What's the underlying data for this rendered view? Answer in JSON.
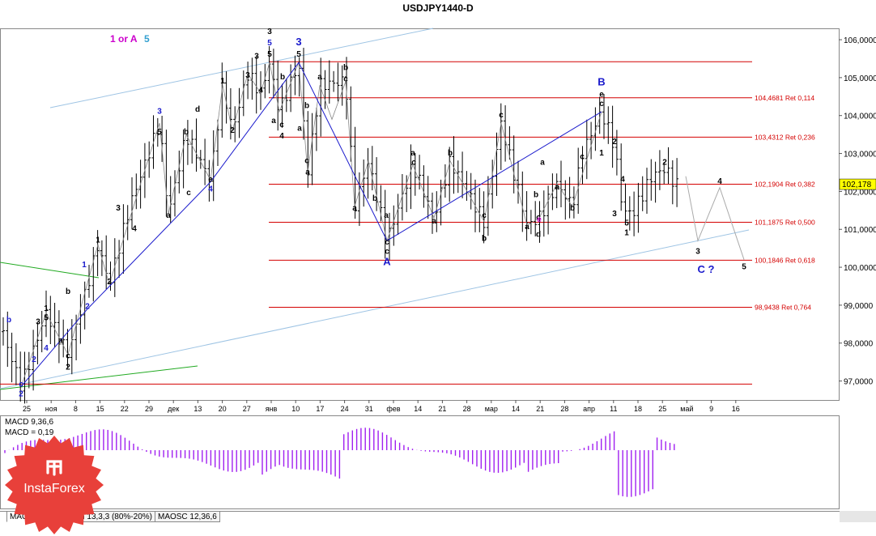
{
  "window": {
    "title": "USDJPY1440-D"
  },
  "header": {
    "wave_label_a": "1 or A",
    "wave_label_b": "5"
  },
  "colors": {
    "fib": "#d40000",
    "wave_blue": "#1a1acc",
    "wave_magenta": "#cc00cc",
    "wave_cyan": "#33a0d0",
    "channel": "#9ec4e4",
    "green": "#22aa22",
    "price_box": "#ffff00",
    "macd": "#a020f0"
  },
  "tabs": [
    {
      "label": "MACD 9,36,6"
    },
    {
      "label": "Stoch 13,3,3 (80%-20%)"
    },
    {
      "label": "MAOSC 12,36,6"
    }
  ],
  "logo": {
    "text": "InstaForex"
  },
  "chart_data": {
    "type": "candlestick",
    "symbol": "USDJPY",
    "timeframe": "D",
    "ylim": [
      96.5,
      106.3
    ],
    "y_ticks": [
      "106,0000",
      "105,0000",
      "104,0000",
      "103,0000",
      "102,0000",
      "101,0000",
      "100,0000",
      "99,0000",
      "98,0000",
      "97,0000"
    ],
    "x_ticks": [
      "25",
      "ноя",
      "8",
      "15",
      "22",
      "29",
      "дек",
      "13",
      "20",
      "27",
      "янв",
      "10",
      "17",
      "24",
      "31",
      "фев",
      "14",
      "21",
      "28",
      "мар",
      "14",
      "21",
      "28",
      "апр",
      "11",
      "18",
      "25",
      "май",
      "9",
      "16"
    ],
    "current_price": "102,178",
    "fib_levels": [
      {
        "value": 105.42,
        "label": ""
      },
      {
        "value": 104.4681,
        "label": "104,4681 Ret 0,114"
      },
      {
        "value": 103.4312,
        "label": "103,4312 Ret 0,236"
      },
      {
        "value": 102.1904,
        "label": "102,1904 Ret 0,382"
      },
      {
        "value": 101.1875,
        "label": "101,1875 Ret 0,500"
      },
      {
        "value": 100.1846,
        "label": "100,1846 Ret 0,618"
      },
      {
        "value": 98.9438,
        "label": "98,9438 Ret 0,764"
      },
      {
        "value": 96.92,
        "label": ""
      }
    ],
    "wave_labels": [
      {
        "text": "b",
        "x": 11,
        "y": 98.55,
        "color": "blue"
      },
      {
        "text": "c",
        "x": 26,
        "y": 96.85,
        "color": "blue"
      },
      {
        "text": "2",
        "x": 26,
        "y": 96.6,
        "color": "blue"
      },
      {
        "text": "1",
        "x": 57,
        "y": 98.85,
        "color": "black"
      },
      {
        "text": "5",
        "x": 57,
        "y": 98.6,
        "color": "black"
      },
      {
        "text": "3",
        "x": 47,
        "y": 98.5,
        "color": "black"
      },
      {
        "text": "a",
        "x": 75,
        "y": 98.0,
        "color": "black"
      },
      {
        "text": "4",
        "x": 57,
        "y": 97.8,
        "color": "blue"
      },
      {
        "text": "2",
        "x": 42,
        "y": 97.5,
        "color": "blue"
      },
      {
        "text": "b",
        "x": 84,
        "y": 99.3,
        "color": "black"
      },
      {
        "text": "c",
        "x": 84,
        "y": 97.6,
        "color": "black"
      },
      {
        "text": "2",
        "x": 84,
        "y": 97.3,
        "color": "black"
      },
      {
        "text": "1",
        "x": 104,
        "y": 100.0,
        "color": "blue"
      },
      {
        "text": "2",
        "x": 108,
        "y": 98.9,
        "color": "blue"
      },
      {
        "text": "1",
        "x": 121,
        "y": 100.65,
        "color": "black"
      },
      {
        "text": "2",
        "x": 135,
        "y": 99.55,
        "color": "black"
      },
      {
        "text": "3",
        "x": 146,
        "y": 101.5,
        "color": "black"
      },
      {
        "text": "4",
        "x": 166,
        "y": 100.95,
        "color": "black"
      },
      {
        "text": "3",
        "x": 197,
        "y": 104.05,
        "color": "blue"
      },
      {
        "text": "5",
        "x": 197,
        "y": 103.5,
        "color": "black"
      },
      {
        "text": "a",
        "x": 208,
        "y": 101.3,
        "color": "black"
      },
      {
        "text": "b",
        "x": 230,
        "y": 103.5,
        "color": "black"
      },
      {
        "text": "c",
        "x": 233,
        "y": 101.9,
        "color": "black"
      },
      {
        "text": "4",
        "x": 260,
        "y": 102.0,
        "color": "blue"
      },
      {
        "text": "d",
        "x": 244,
        "y": 104.1,
        "color": "black"
      },
      {
        "text": "e",
        "x": 260,
        "y": 102.25,
        "color": "black"
      },
      {
        "text": "1",
        "x": 275,
        "y": 104.85,
        "color": "black"
      },
      {
        "text": "2",
        "x": 287,
        "y": 103.55,
        "color": "black"
      },
      {
        "text": "3",
        "x": 306,
        "y": 105.0,
        "color": "black"
      },
      {
        "text": "4",
        "x": 322,
        "y": 104.6,
        "color": "black"
      },
      {
        "text": "3",
        "x": 317,
        "y": 105.5,
        "color": "black"
      },
      {
        "text": "3",
        "x": 333,
        "y": 106.15,
        "color": "black"
      },
      {
        "text": "5",
        "x": 333,
        "y": 105.85,
        "color": "blue"
      },
      {
        "text": "5",
        "x": 333,
        "y": 105.55,
        "color": "black"
      },
      {
        "text": "3",
        "x": 369,
        "y": 105.85,
        "color": "blue"
      },
      {
        "text": "5",
        "x": 369,
        "y": 105.55,
        "color": "black"
      },
      {
        "text": "b",
        "x": 349,
        "y": 104.95,
        "color": "black"
      },
      {
        "text": "a",
        "x": 338,
        "y": 103.8,
        "color": "black"
      },
      {
        "text": "c",
        "x": 348,
        "y": 103.7,
        "color": "black"
      },
      {
        "text": "4",
        "x": 348,
        "y": 103.4,
        "color": "black"
      },
      {
        "text": "a",
        "x": 395,
        "y": 104.95,
        "color": "black"
      },
      {
        "text": "b",
        "x": 379,
        "y": 104.2,
        "color": "black"
      },
      {
        "text": "c",
        "x": 379,
        "y": 102.75,
        "color": "black"
      },
      {
        "text": "a",
        "x": 380,
        "y": 102.45,
        "color": "black"
      },
      {
        "text": "a",
        "x": 370,
        "y": 103.6,
        "color": "black"
      },
      {
        "text": "b",
        "x": 427,
        "y": 105.2,
        "color": "black"
      },
      {
        "text": "c",
        "x": 427,
        "y": 104.9,
        "color": "black"
      },
      {
        "text": "a",
        "x": 438,
        "y": 101.5,
        "color": "black"
      },
      {
        "text": "b",
        "x": 463,
        "y": 101.75,
        "color": "black"
      },
      {
        "text": "a",
        "x": 477,
        "y": 101.3,
        "color": "black"
      },
      {
        "text": "c",
        "x": 478,
        "y": 100.6,
        "color": "black"
      },
      {
        "text": "c",
        "x": 478,
        "y": 100.35,
        "color": "black"
      },
      {
        "text": "A",
        "x": 478,
        "y": 100.05,
        "color": "blue"
      },
      {
        "text": "a",
        "x": 510,
        "y": 102.95,
        "color": "black"
      },
      {
        "text": "c",
        "x": 511,
        "y": 102.7,
        "color": "black"
      },
      {
        "text": "a",
        "x": 536,
        "y": 101.15,
        "color": "black"
      },
      {
        "text": "b",
        "x": 556,
        "y": 102.95,
        "color": "black"
      },
      {
        "text": "c",
        "x": 598,
        "y": 101.3,
        "color": "black"
      },
      {
        "text": "b",
        "x": 598,
        "y": 100.7,
        "color": "black"
      },
      {
        "text": "c",
        "x": 619,
        "y": 103.95,
        "color": "black"
      },
      {
        "text": "a",
        "x": 670,
        "y": 102.7,
        "color": "black"
      },
      {
        "text": "b",
        "x": 662,
        "y": 101.85,
        "color": "black"
      },
      {
        "text": "c",
        "x": 665,
        "y": 101.25,
        "color": "black"
      },
      {
        "text": "a",
        "x": 651,
        "y": 101.0,
        "color": "black"
      },
      {
        "text": "d",
        "x": 665,
        "y": 100.8,
        "color": "black"
      },
      {
        "text": "e",
        "x": 666,
        "y": 101.2,
        "color": "magenta"
      },
      {
        "text": "a",
        "x": 688,
        "y": 102.05,
        "color": "black"
      },
      {
        "text": "b",
        "x": 707,
        "y": 101.5,
        "color": "black"
      },
      {
        "text": "c",
        "x": 719,
        "y": 102.85,
        "color": "black"
      },
      {
        "text": "B",
        "x": 743,
        "y": 104.8,
        "color": "blue"
      },
      {
        "text": "e",
        "x": 743,
        "y": 104.5,
        "color": "black"
      },
      {
        "text": "c",
        "x": 743,
        "y": 104.25,
        "color": "black"
      },
      {
        "text": "1",
        "x": 743,
        "y": 102.95,
        "color": "black"
      },
      {
        "text": "2",
        "x": 759,
        "y": 103.25,
        "color": "black"
      },
      {
        "text": "4",
        "x": 769,
        "y": 102.25,
        "color": "black"
      },
      {
        "text": "3",
        "x": 759,
        "y": 101.35,
        "color": "black"
      },
      {
        "text": "5",
        "x": 774,
        "y": 101.1,
        "color": "black"
      },
      {
        "text": "1",
        "x": 774,
        "y": 100.85,
        "color": "black"
      },
      {
        "text": "2",
        "x": 821,
        "y": 102.7,
        "color": "black"
      },
      {
        "text": "4",
        "x": 889,
        "y": 102.2,
        "color": "black"
      },
      {
        "text": "3",
        "x": 862,
        "y": 100.35,
        "color": "black"
      },
      {
        "text": "5",
        "x": 919,
        "y": 99.95,
        "color": "black"
      },
      {
        "text": "C ?",
        "x": 872,
        "y": 99.85,
        "color": "blue"
      }
    ],
    "macd": {
      "label": "MACD 9,36,6",
      "value_label": "MACD = 0,19"
    }
  }
}
